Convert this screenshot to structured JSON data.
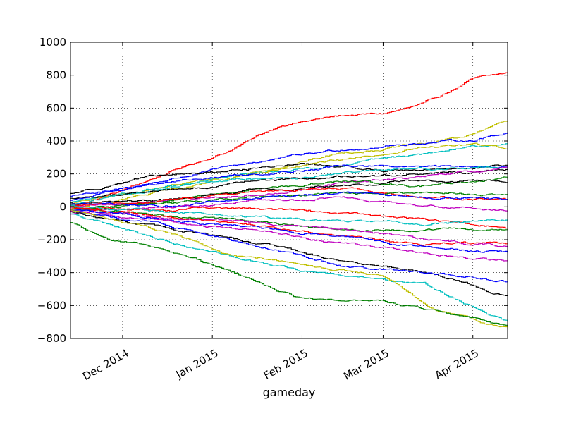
{
  "chart_data": {
    "type": "line",
    "xlabel": "gameday",
    "ylabel": "",
    "title": "",
    "x_start": "2014-11-13",
    "x_end": "2015-04-13",
    "ylim": [
      -800,
      1000
    ],
    "yticks": [
      1000,
      800,
      600,
      400,
      200,
      0,
      -200,
      -400,
      -600,
      -800
    ],
    "xticks": [
      {
        "date": "2014-12-01",
        "label": "Dec 2014"
      },
      {
        "date": "2015-01-01",
        "label": "Jan 2015"
      },
      {
        "date": "2015-02-01",
        "label": "Feb 2015"
      },
      {
        "date": "2015-03-01",
        "label": "Mar 2015"
      },
      {
        "date": "2015-04-01",
        "label": "Apr 2015"
      }
    ],
    "grid": true,
    "legend": "none",
    "series": [
      {
        "color": "#ff0000",
        "dates": [
          "2014-11-13",
          "2014-12-01",
          "2014-12-20",
          "2015-01-05",
          "2015-01-25",
          "2015-02-15",
          "2015-03-01",
          "2015-03-15",
          "2015-04-01",
          "2015-04-13"
        ],
        "values": [
          0,
          100,
          230,
          330,
          500,
          555,
          565,
          620,
          775,
          810
        ]
      },
      {
        "color": "#bfbf00",
        "dates": [
          "2014-11-13",
          "2014-12-15",
          "2015-01-15",
          "2015-02-15",
          "2015-03-15",
          "2015-04-01",
          "2015-04-13"
        ],
        "values": [
          20,
          120,
          210,
          330,
          380,
          440,
          525
        ]
      },
      {
        "color": "#0000ff",
        "dates": [
          "2014-11-13",
          "2014-12-15",
          "2015-01-15",
          "2015-02-15",
          "2015-03-15",
          "2015-04-01",
          "2015-04-13"
        ],
        "values": [
          40,
          160,
          270,
          350,
          390,
          405,
          455
        ]
      },
      {
        "color": "#00bfbf",
        "dates": [
          "2014-11-13",
          "2014-12-15",
          "2015-01-15",
          "2015-02-15",
          "2015-03-15",
          "2015-04-01",
          "2015-04-13"
        ],
        "values": [
          10,
          110,
          200,
          260,
          320,
          360,
          385
        ]
      },
      {
        "color": "#bfbf00",
        "dates": [
          "2014-11-13",
          "2014-12-15",
          "2015-01-15",
          "2015-02-15",
          "2015-03-15",
          "2015-04-01",
          "2015-04-13"
        ],
        "values": [
          -10,
          90,
          200,
          280,
          360,
          380,
          350
        ]
      },
      {
        "color": "#000000",
        "dates": [
          "2014-11-13",
          "2014-12-05",
          "2015-01-01",
          "2015-02-01",
          "2015-03-01",
          "2015-04-01",
          "2015-04-13"
        ],
        "values": [
          80,
          170,
          210,
          260,
          220,
          240,
          250
        ]
      },
      {
        "color": "#0000ff",
        "dates": [
          "2014-11-13",
          "2014-12-15",
          "2015-01-15",
          "2015-02-15",
          "2015-03-15",
          "2015-04-13"
        ],
        "values": [
          60,
          150,
          200,
          250,
          240,
          250
        ]
      },
      {
        "color": "#00bfbf",
        "dates": [
          "2014-11-13",
          "2014-12-15",
          "2015-01-15",
          "2015-02-15",
          "2015-03-15",
          "2015-04-13"
        ],
        "values": [
          30,
          120,
          170,
          200,
          230,
          245
        ]
      },
      {
        "color": "#000000",
        "dates": [
          "2014-11-13",
          "2014-12-15",
          "2015-01-15",
          "2015-02-15",
          "2015-03-15",
          "2015-04-13"
        ],
        "values": [
          50,
          100,
          150,
          180,
          200,
          225
        ]
      },
      {
        "color": "#bf00bf",
        "dates": [
          "2014-11-13",
          "2014-12-15",
          "2015-01-15",
          "2015-02-15",
          "2015-03-15",
          "2015-04-13"
        ],
        "values": [
          0,
          40,
          70,
          140,
          180,
          230
        ]
      },
      {
        "color": "#008000",
        "dates": [
          "2014-11-13",
          "2014-12-15",
          "2015-01-15",
          "2015-02-15",
          "2015-03-15",
          "2015-04-13"
        ],
        "values": [
          -20,
          30,
          100,
          160,
          130,
          170
        ]
      },
      {
        "color": "#000000",
        "dates": [
          "2014-11-13",
          "2014-12-15",
          "2015-01-15",
          "2015-02-15",
          "2015-03-15",
          "2015-04-13"
        ],
        "values": [
          20,
          40,
          100,
          130,
          160,
          150
        ]
      },
      {
        "color": "#ff0000",
        "dates": [
          "2014-11-13",
          "2014-12-15",
          "2015-01-15",
          "2015-02-15",
          "2015-03-15",
          "2015-04-13"
        ],
        "values": [
          10,
          40,
          90,
          110,
          60,
          40
        ]
      },
      {
        "color": "#008000",
        "dates": [
          "2014-11-13",
          "2014-12-15",
          "2015-01-15",
          "2015-02-15",
          "2015-03-15",
          "2015-04-13"
        ],
        "values": [
          -30,
          20,
          60,
          80,
          80,
          70
        ]
      },
      {
        "color": "#0000ff",
        "dates": [
          "2014-11-13",
          "2014-12-15",
          "2015-01-15",
          "2015-02-15",
          "2015-03-15",
          "2015-04-13"
        ],
        "values": [
          20,
          0,
          60,
          80,
          60,
          40
        ]
      },
      {
        "color": "#bf00bf",
        "dates": [
          "2014-11-13",
          "2014-12-15",
          "2015-01-15",
          "2015-02-15",
          "2015-03-15",
          "2015-04-13"
        ],
        "values": [
          -20,
          -10,
          30,
          60,
          0,
          -20
        ]
      },
      {
        "color": "#ff0000",
        "dates": [
          "2014-11-13",
          "2014-12-15",
          "2015-01-15",
          "2015-02-15",
          "2015-03-15",
          "2015-04-13"
        ],
        "values": [
          0,
          -20,
          -10,
          -40,
          -80,
          -130
        ]
      },
      {
        "color": "#00bfbf",
        "dates": [
          "2014-11-13",
          "2014-12-15",
          "2015-01-15",
          "2015-02-15",
          "2015-03-15",
          "2015-04-13"
        ],
        "values": [
          10,
          -30,
          -60,
          -90,
          -100,
          -80
        ]
      },
      {
        "color": "#008000",
        "dates": [
          "2014-11-13",
          "2014-12-15",
          "2015-01-15",
          "2015-02-15",
          "2015-03-15",
          "2015-04-13"
        ],
        "values": [
          0,
          -60,
          -80,
          -150,
          -140,
          -140
        ]
      },
      {
        "color": "#bf00bf",
        "dates": [
          "2014-11-13",
          "2014-12-15",
          "2015-01-15",
          "2015-02-15",
          "2015-03-15",
          "2015-04-13"
        ],
        "values": [
          -30,
          -60,
          -100,
          -130,
          -200,
          -240
        ]
      },
      {
        "color": "#ff0000",
        "dates": [
          "2014-11-13",
          "2014-12-15",
          "2015-01-15",
          "2015-02-15",
          "2015-03-15",
          "2015-04-13"
        ],
        "values": [
          -10,
          -50,
          -120,
          -180,
          -230,
          -225
        ]
      },
      {
        "color": "#0000ff",
        "dates": [
          "2014-11-13",
          "2014-12-15",
          "2015-01-15",
          "2015-02-15",
          "2015-03-15",
          "2015-04-13"
        ],
        "values": [
          -20,
          -70,
          -130,
          -180,
          -240,
          -280
        ]
      },
      {
        "color": "#bf00bf",
        "dates": [
          "2014-11-13",
          "2014-12-15",
          "2015-01-15",
          "2015-02-15",
          "2015-03-15",
          "2015-04-13"
        ],
        "values": [
          -40,
          -90,
          -140,
          -220,
          -280,
          -330
        ]
      },
      {
        "color": "#000000",
        "dates": [
          "2014-11-13",
          "2014-12-15",
          "2015-01-15",
          "2015-02-15",
          "2015-03-15",
          "2015-04-13"
        ],
        "values": [
          -30,
          -120,
          -220,
          -330,
          -390,
          -540
        ]
      },
      {
        "color": "#0000ff",
        "dates": [
          "2014-11-13",
          "2014-12-15",
          "2015-01-15",
          "2015-02-15",
          "2015-03-15",
          "2015-04-13"
        ],
        "values": [
          -20,
          -110,
          -230,
          -360,
          -400,
          -455
        ]
      },
      {
        "color": "#00bfbf",
        "dates": [
          "2014-11-13",
          "2014-12-15",
          "2015-01-15",
          "2015-02-15",
          "2015-03-15",
          "2015-04-13"
        ],
        "values": [
          -40,
          -200,
          -330,
          -430,
          -470,
          -700
        ]
      },
      {
        "color": "#bfbf00",
        "dates": [
          "2014-11-13",
          "2014-12-15",
          "2015-01-05",
          "2015-02-01",
          "2015-03-01",
          "2015-03-20",
          "2015-04-13"
        ],
        "values": [
          -20,
          -140,
          -280,
          -350,
          -420,
          -640,
          -740
        ]
      },
      {
        "color": "#008000",
        "dates": [
          "2014-11-13",
          "2014-11-25",
          "2014-12-15",
          "2015-01-05",
          "2015-02-01",
          "2015-03-01",
          "2015-04-13"
        ],
        "values": [
          -100,
          -200,
          -260,
          -380,
          -560,
          -580,
          -720
        ]
      }
    ]
  }
}
